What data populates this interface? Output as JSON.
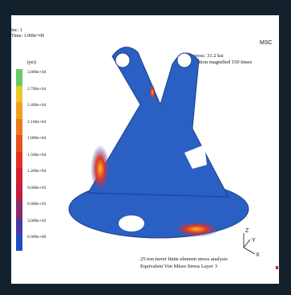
{
  "header": {
    "inc": "Inc: 1",
    "time": "Time: 1.000e+00"
  },
  "legend": {
    "unit": "(psi)",
    "entries": [
      {
        "label": "3.000e+04",
        "color": "#66cc66"
      },
      {
        "label": "2.700e+04",
        "color": "#e8c828"
      },
      {
        "label": "2.400e+04",
        "color": "#f0a020"
      },
      {
        "label": "2.100e+04",
        "color": "#ec7a1c"
      },
      {
        "label": "1.800e+04",
        "color": "#e8501e"
      },
      {
        "label": "1.500e+04",
        "color": "#e23226"
      },
      {
        "label": "1.200e+04",
        "color": "#d4202e"
      },
      {
        "label": "9.000e+03",
        "color": "#c41e3a"
      },
      {
        "label": "6.000e+03",
        "color": "#8a2a6e"
      },
      {
        "label": "3.000e+03",
        "color": "#4a3aa0"
      },
      {
        "label": "0.000e+00",
        "color": "#1e4ec0"
      }
    ]
  },
  "annotation": {
    "peak": "Peak stress: 31.2 ksi",
    "deformation": "Deformation magnified 150 times"
  },
  "logo": "MSC",
  "caption": {
    "line1": "25-ton turret finite element stress analysis",
    "line2": "Equivalent Von Mises Stress Layer 3"
  },
  "axes": {
    "z": "Z",
    "y": "Y",
    "x": "X"
  },
  "colors": {
    "model_blue": "#2a5fc4",
    "hot_red": "#d8202a",
    "hot_yellow": "#f0c020",
    "frame": "#13212d"
  }
}
